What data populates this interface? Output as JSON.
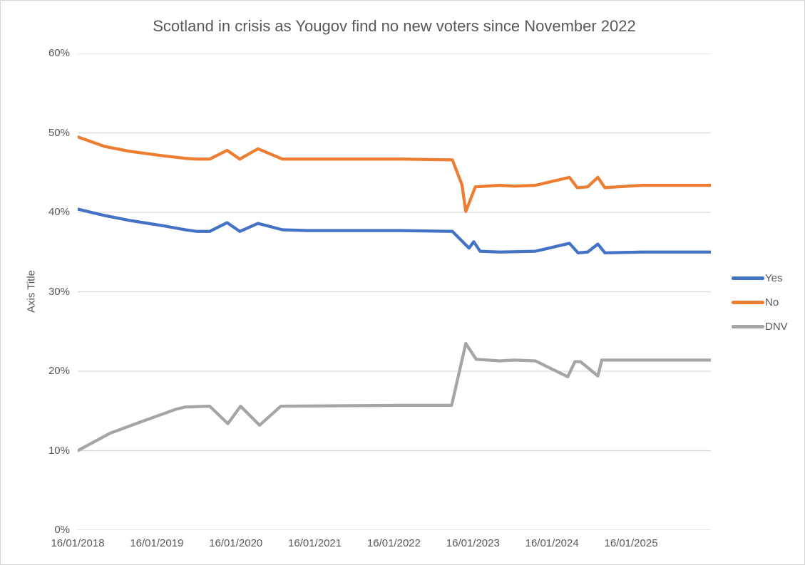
{
  "window": {
    "background": "#ffffff",
    "border_color": "#d6d6d6"
  },
  "chart_data": {
    "type": "line",
    "title": "Scotland in crisis as Yougov find no new voters since November 2022",
    "y_axis_title": "Axis Title",
    "grid": "on",
    "grid_color": "#d9d9d9",
    "text_color": "#595959",
    "legend_position": "right",
    "y_axis": {
      "min": 0,
      "max": 60,
      "ticks": [
        {
          "label": "0%",
          "v": 0
        },
        {
          "label": "10%",
          "v": 10
        },
        {
          "label": "20%",
          "v": 20
        },
        {
          "label": "30%",
          "v": 30
        },
        {
          "label": "40%",
          "v": 40
        },
        {
          "label": "50%",
          "v": 50
        },
        {
          "label": "60%",
          "v": 60
        }
      ]
    },
    "x_axis": {
      "min": 2018.04,
      "max": 2026.05,
      "ticks": [
        {
          "label": "16/01/2018",
          "t": 2018.04
        },
        {
          "label": "16/01/2019",
          "t": 2019.04
        },
        {
          "label": "16/01/2020",
          "t": 2020.04
        },
        {
          "label": "16/01/2021",
          "t": 2021.04
        },
        {
          "label": "16/01/2022",
          "t": 2022.04
        },
        {
          "label": "16/01/2023",
          "t": 2023.04
        },
        {
          "label": "16/01/2024",
          "t": 2024.04
        },
        {
          "label": "16/01/2025",
          "t": 2025.04
        }
      ]
    },
    "series": [
      {
        "name": "Yes",
        "color": "#4472C4",
        "points": [
          [
            2018.04,
            40.4
          ],
          [
            2018.38,
            39.6
          ],
          [
            2018.68,
            39.0
          ],
          [
            2019.13,
            38.3
          ],
          [
            2019.4,
            37.8
          ],
          [
            2019.55,
            37.6
          ],
          [
            2019.71,
            37.6
          ],
          [
            2019.93,
            38.7
          ],
          [
            2020.09,
            37.6
          ],
          [
            2020.32,
            38.6
          ],
          [
            2020.63,
            37.8
          ],
          [
            2020.95,
            37.7
          ],
          [
            2022.12,
            37.7
          ],
          [
            2022.78,
            37.6
          ],
          [
            2022.99,
            35.5
          ],
          [
            2023.05,
            36.3
          ],
          [
            2023.13,
            35.1
          ],
          [
            2023.38,
            35.0
          ],
          [
            2023.83,
            35.1
          ],
          [
            2024.26,
            36.1
          ],
          [
            2024.37,
            34.9
          ],
          [
            2024.49,
            35.0
          ],
          [
            2024.62,
            36.0
          ],
          [
            2024.71,
            34.9
          ],
          [
            2025.18,
            35.0
          ],
          [
            2026.05,
            35.0
          ]
        ]
      },
      {
        "name": "No",
        "color": "#ED7D31",
        "points": [
          [
            2018.04,
            49.5
          ],
          [
            2018.38,
            48.3
          ],
          [
            2018.68,
            47.7
          ],
          [
            2019.13,
            47.1
          ],
          [
            2019.4,
            46.8
          ],
          [
            2019.55,
            46.7
          ],
          [
            2019.71,
            46.7
          ],
          [
            2019.93,
            47.8
          ],
          [
            2020.09,
            46.7
          ],
          [
            2020.32,
            48.0
          ],
          [
            2020.63,
            46.7
          ],
          [
            2022.12,
            46.7
          ],
          [
            2022.78,
            46.6
          ],
          [
            2022.9,
            43.5
          ],
          [
            2022.95,
            40.1
          ],
          [
            2023.07,
            43.2
          ],
          [
            2023.38,
            43.4
          ],
          [
            2023.56,
            43.3
          ],
          [
            2023.83,
            43.4
          ],
          [
            2024.26,
            44.4
          ],
          [
            2024.36,
            43.1
          ],
          [
            2024.49,
            43.2
          ],
          [
            2024.62,
            44.4
          ],
          [
            2024.71,
            43.1
          ],
          [
            2025.18,
            43.4
          ],
          [
            2026.05,
            43.4
          ]
        ]
      },
      {
        "name": "DNV",
        "color": "#A5A5A5",
        "points": [
          [
            2018.04,
            10.0
          ],
          [
            2018.45,
            12.2
          ],
          [
            2018.86,
            13.7
          ],
          [
            2019.28,
            15.2
          ],
          [
            2019.4,
            15.5
          ],
          [
            2019.71,
            15.6
          ],
          [
            2019.94,
            13.4
          ],
          [
            2020.1,
            15.6
          ],
          [
            2020.34,
            13.2
          ],
          [
            2020.61,
            15.6
          ],
          [
            2022.12,
            15.7
          ],
          [
            2022.77,
            15.7
          ],
          [
            2022.95,
            23.5
          ],
          [
            2023.08,
            21.5
          ],
          [
            2023.38,
            21.3
          ],
          [
            2023.56,
            21.4
          ],
          [
            2023.83,
            21.3
          ],
          [
            2024.24,
            19.3
          ],
          [
            2024.33,
            21.2
          ],
          [
            2024.4,
            21.2
          ],
          [
            2024.62,
            19.4
          ],
          [
            2024.67,
            21.4
          ],
          [
            2025.18,
            21.4
          ],
          [
            2026.05,
            21.4
          ]
        ]
      }
    ]
  }
}
